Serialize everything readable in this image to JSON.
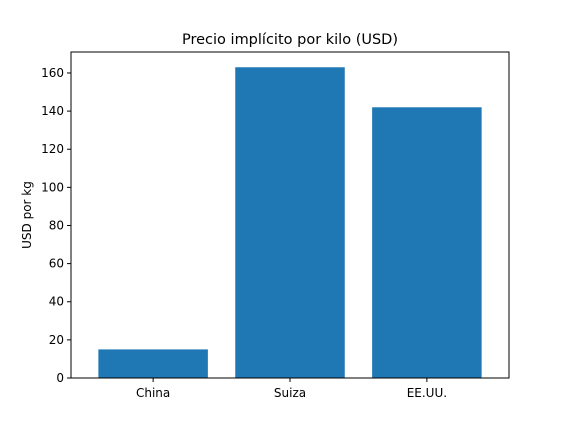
{
  "chart_data": {
    "type": "bar",
    "title": "Precio implícito por kilo (USD)",
    "xlabel": "",
    "ylabel": "USD por kg",
    "categories": [
      "China",
      "Suiza",
      "EE.UU."
    ],
    "values": [
      15,
      163,
      142
    ],
    "ylim": [
      0,
      171
    ],
    "yticks": [
      0,
      20,
      40,
      60,
      80,
      100,
      120,
      140,
      160
    ],
    "grid": false,
    "legend": "none",
    "bar_color": "#1f77b4"
  }
}
